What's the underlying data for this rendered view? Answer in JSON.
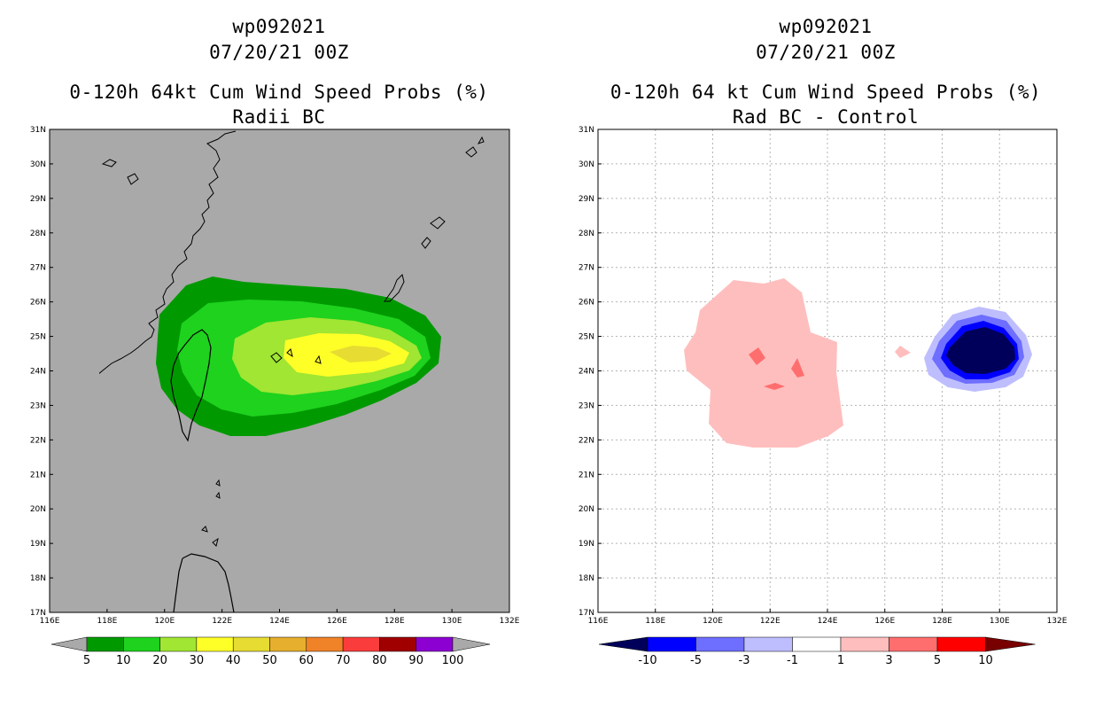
{
  "left_panel": {
    "storm": "wp092021",
    "datetime": "07/20/21 00Z",
    "title": "0-120h 64kt Cum Wind Speed Probs (%)",
    "subtitle": "Radii BC",
    "colorbar_labels": [
      "5",
      "10",
      "20",
      "30",
      "40",
      "50",
      "60",
      "70",
      "80",
      "90",
      "100"
    ],
    "colorbar_colors": [
      "#009a00",
      "#1ed21e",
      "#a0e632",
      "#ffff28",
      "#e6dc32",
      "#e6af2d",
      "#f08228",
      "#fa3c3c",
      "#a00000",
      "#8c00d2"
    ],
    "background_color": "#a9a9a9"
  },
  "right_panel": {
    "storm": "wp092021",
    "datetime": "07/20/21 00Z",
    "title": "0-120h 64 kt Cum Wind Speed Probs (%)",
    "subtitle": "Rad BC - Control",
    "colorbar_labels": [
      "-10",
      "-5",
      "-3",
      "-1",
      "1",
      "3",
      "5",
      "10"
    ],
    "colorbar_colors": [
      "#00005a",
      "#0000ff",
      "#6e6eff",
      "#bebeff",
      "#ffffff",
      "#ffbebe",
      "#ff6e6e",
      "#ff0000",
      "#780000"
    ]
  },
  "axes": {
    "lon_labels": [
      "116E",
      "118E",
      "120E",
      "122E",
      "124E",
      "126E",
      "128E",
      "130E",
      "132E"
    ],
    "lat_labels": [
      "31N",
      "30N",
      "29N",
      "28N",
      "27N",
      "26N",
      "25N",
      "24N",
      "23N",
      "22N",
      "21N",
      "20N",
      "19N",
      "18N",
      "17N"
    ],
    "lon_range": [
      116,
      132
    ],
    "lat_range": [
      17,
      31
    ]
  }
}
